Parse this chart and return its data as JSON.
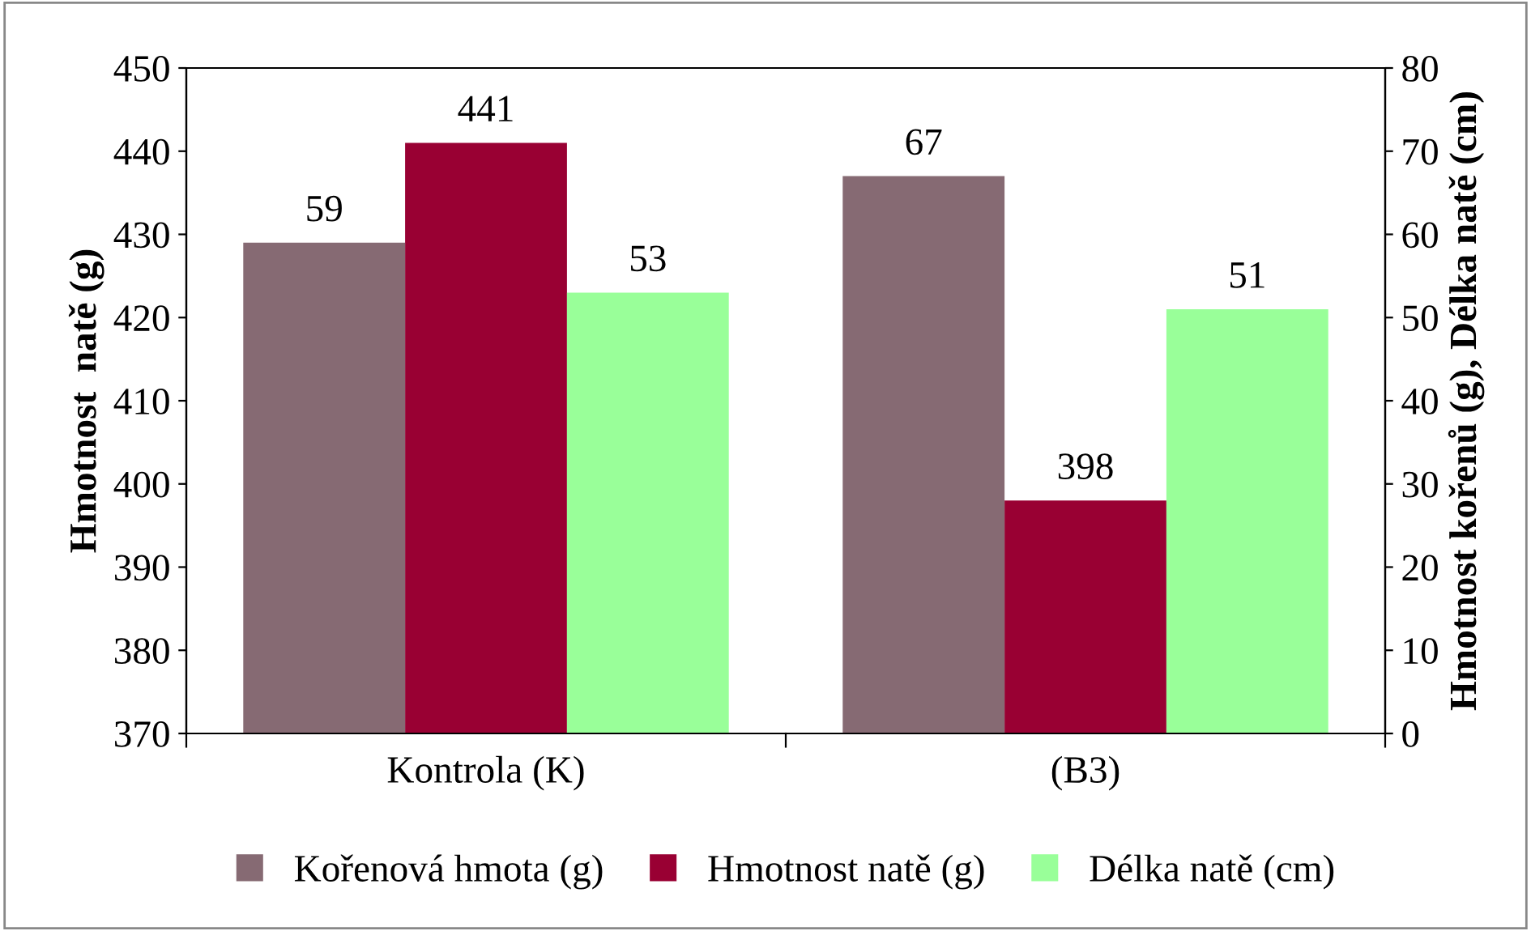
{
  "chart_data": {
    "type": "bar",
    "categories": [
      "Kontrola (K)",
      "(B3)"
    ],
    "ylabel": "Hmotnost  natě (g)",
    "y2label": "Hmotnost kořenů (g), Délka natě (cm)",
    "series": [
      {
        "name": "Kořenová hmota (g)",
        "color": "#866a73",
        "values": [
          59,
          67
        ],
        "axis": "y2"
      },
      {
        "name": "Hmotnost natě (g)",
        "color": "#990033",
        "values": [
          441,
          398
        ]
      },
      {
        "name": "Délka natě (cm)",
        "color": "#99ff99",
        "values": [
          53,
          51
        ],
        "axis": "y2"
      }
    ],
    "ylim": [
      370,
      450
    ],
    "yticks": [
      370,
      380,
      390,
      400,
      410,
      420,
      430,
      440,
      450
    ],
    "y2lim": [
      0,
      80
    ],
    "y2ticks": [
      0,
      10,
      20,
      30,
      40,
      50,
      60,
      70,
      80
    ],
    "data_labels": true,
    "grid": false,
    "legend": "bottom"
  }
}
